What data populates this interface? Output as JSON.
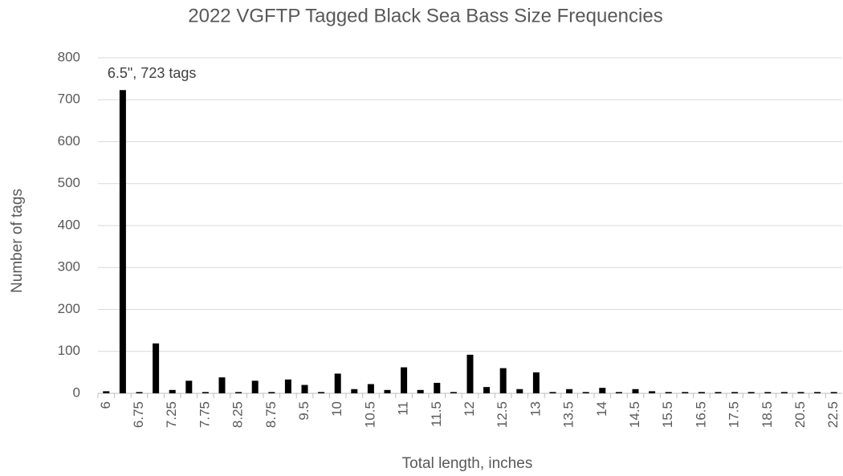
{
  "chart_data": {
    "type": "bar",
    "title": "2022 VGFTP Tagged Black Sea Bass Size Frequencies",
    "x_label": "Total length, inches",
    "y_label": "Number of tags",
    "annotation": "6.5\", 723 tags",
    "categories": [
      "6",
      null,
      "6.75",
      null,
      "7.25",
      null,
      "7.75",
      null,
      "8.25",
      null,
      "8.75",
      null,
      "9.5",
      null,
      "10",
      null,
      "10.5",
      null,
      "11",
      null,
      "11.5",
      null,
      "12",
      null,
      "12.5",
      null,
      "13",
      null,
      "13.5",
      null,
      "14",
      null,
      "14.5",
      null,
      "15.5",
      null,
      "16.5",
      null,
      "17.5",
      null,
      "18.5",
      null,
      "20.5",
      null,
      "22.5"
    ],
    "values": [
      5,
      723,
      3,
      119,
      8,
      30,
      3,
      38,
      3,
      30,
      3,
      33,
      20,
      3,
      47,
      10,
      22,
      8,
      62,
      8,
      25,
      3,
      92,
      15,
      60,
      10,
      50,
      3,
      10,
      3,
      13,
      3,
      10,
      5,
      3,
      3,
      3,
      3,
      3,
      3,
      3,
      3,
      3,
      3,
      3
    ],
    "color": "#000000",
    "ylim": [
      0,
      800
    ],
    "yticks": [
      0,
      100,
      200,
      300,
      400,
      500,
      600,
      700,
      800
    ],
    "grid": true
  }
}
